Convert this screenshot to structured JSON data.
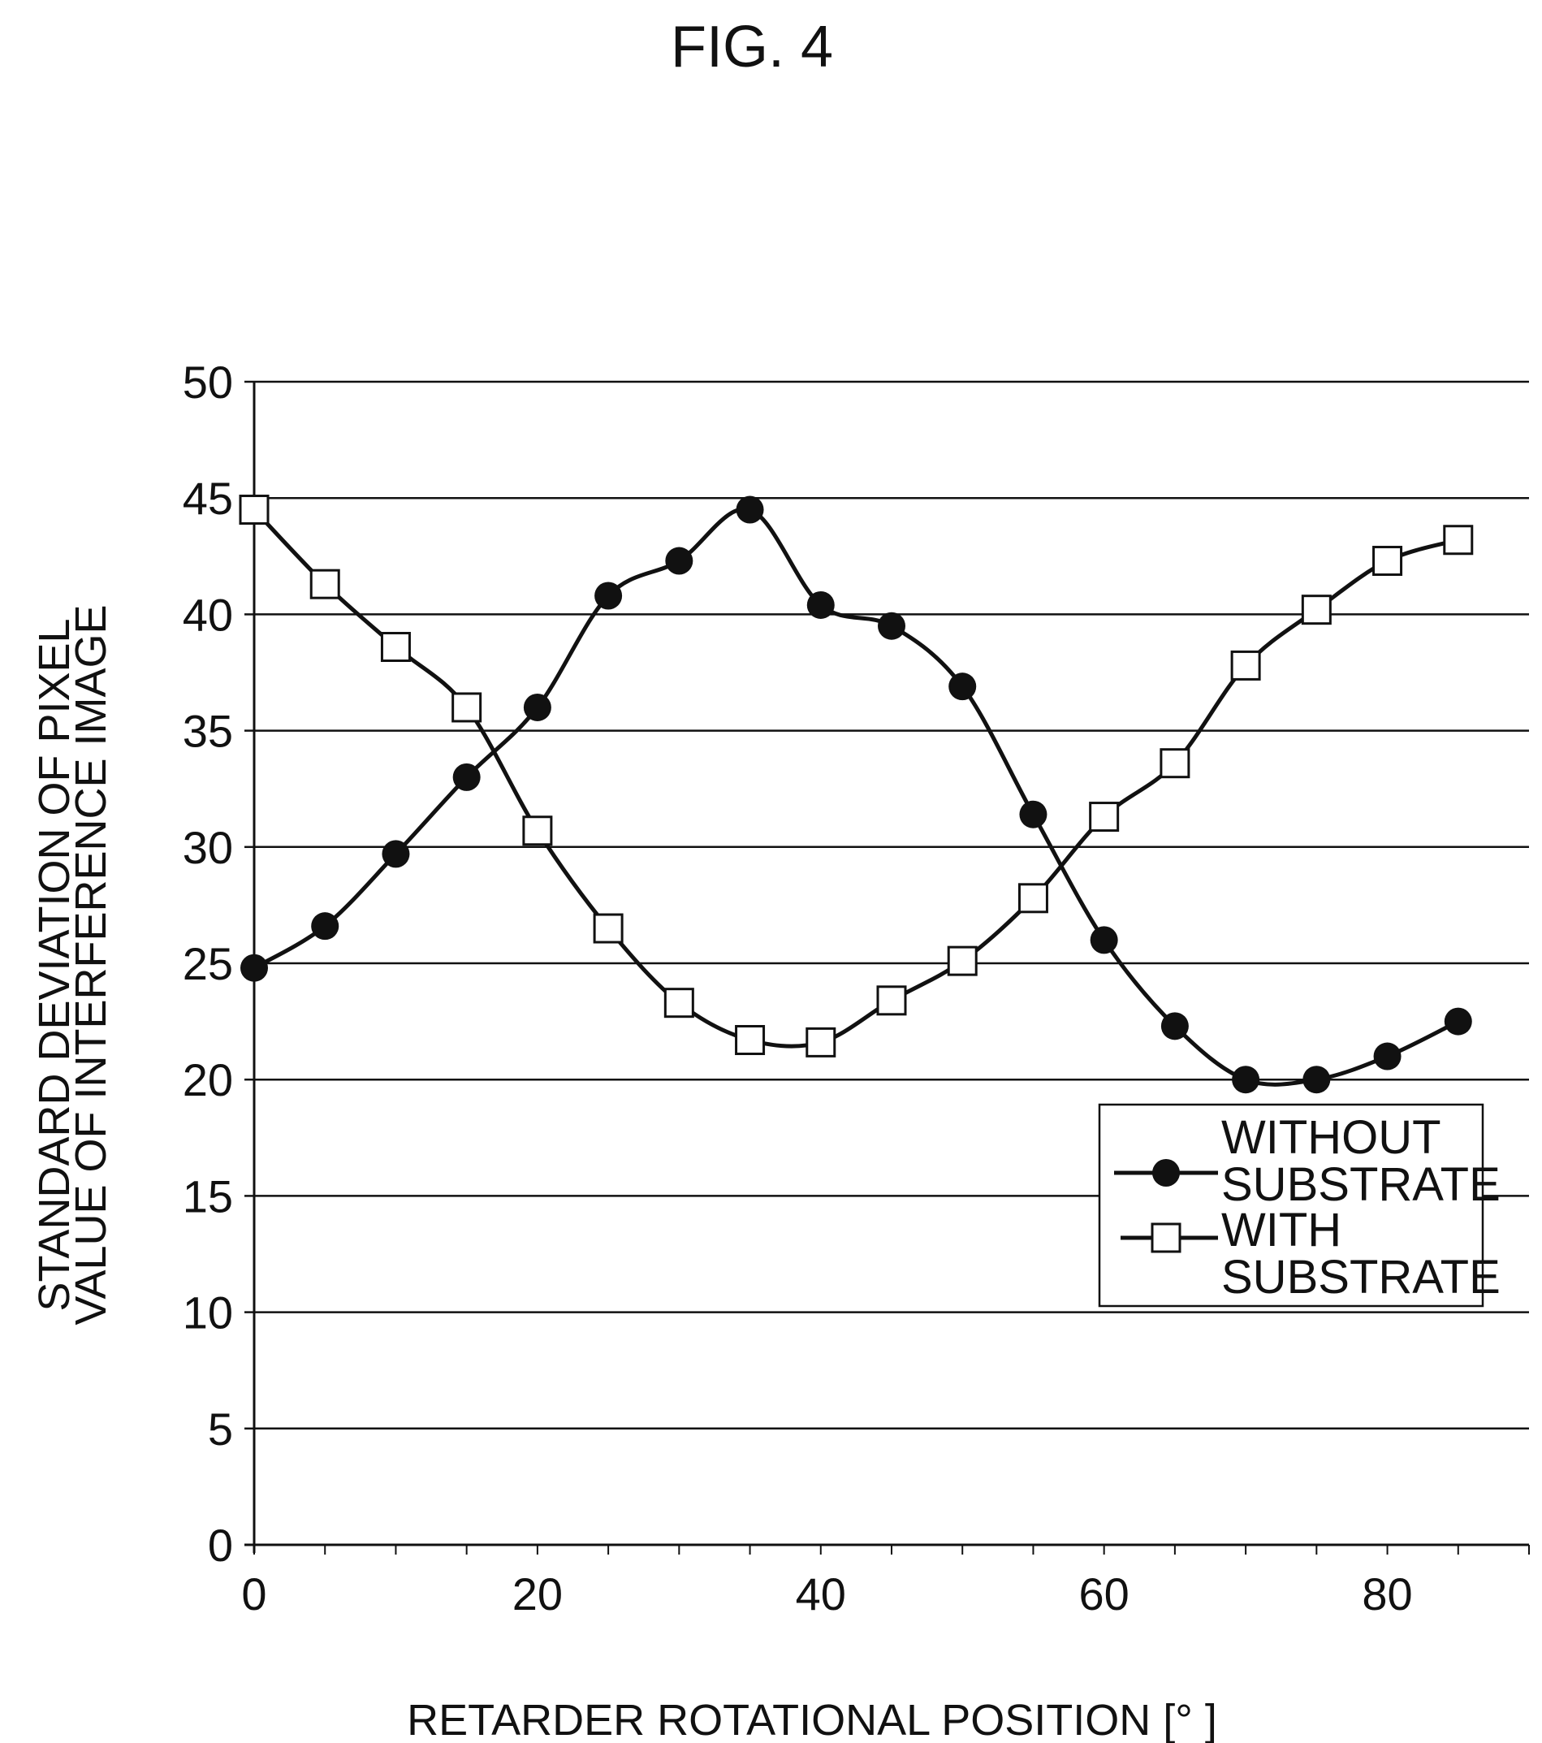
{
  "figure_title": "FIG. 4",
  "chart_data": {
    "type": "line",
    "title": "FIG. 4",
    "xlabel": "RETARDER ROTATIONAL POSITION [°  ]",
    "ylabel_lines": [
      "STANDARD DEVIATION OF PIXEL",
      "VALUE OF INTERFERENCE IMAGE"
    ],
    "xlim": [
      0,
      90
    ],
    "ylim": [
      0,
      50
    ],
    "xticks": [
      0,
      20,
      40,
      60,
      80
    ],
    "yticks": [
      0,
      5,
      10,
      15,
      20,
      25,
      30,
      35,
      40,
      45,
      50
    ],
    "grid": "horizontal",
    "legend_position": "lower-right",
    "x": [
      0,
      5,
      10,
      15,
      20,
      25,
      30,
      35,
      40,
      45,
      50,
      55,
      60,
      65,
      70,
      75,
      80,
      85
    ],
    "series": [
      {
        "name": "WITHOUT SUBSTRATE",
        "legend_lines": [
          "WITHOUT",
          "SUBSTRATE"
        ],
        "marker": "filled-circle",
        "values": [
          24.8,
          26.6,
          29.7,
          33.0,
          36.0,
          40.8,
          42.3,
          44.5,
          40.4,
          39.5,
          36.9,
          31.4,
          26.0,
          22.3,
          20.0,
          20.0,
          21.0,
          22.5
        ]
      },
      {
        "name": "WITH SUBSTRATE",
        "legend_lines": [
          "WITH",
          "SUBSTRATE"
        ],
        "marker": "open-square",
        "values": [
          44.5,
          41.3,
          38.6,
          36.0,
          30.7,
          26.5,
          23.3,
          21.7,
          21.6,
          23.4,
          25.1,
          27.8,
          31.3,
          33.6,
          37.8,
          40.2,
          42.3,
          43.2
        ]
      }
    ],
    "colors": {
      "line": "#111111",
      "grid": "#111111",
      "marker_fill_open": "#ffffff",
      "marker_fill_solid": "#111111"
    }
  }
}
